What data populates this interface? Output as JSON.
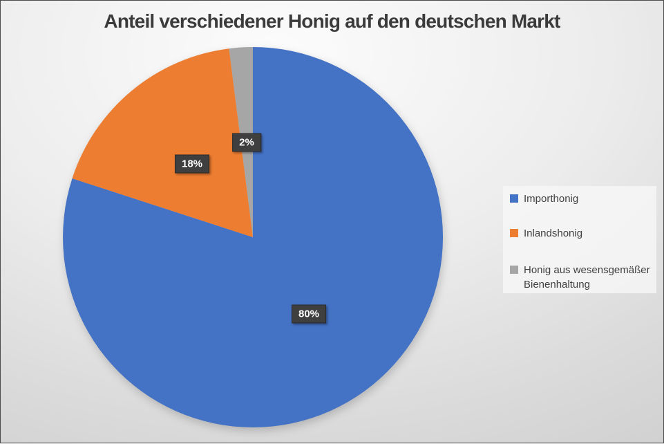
{
  "chart_data": {
    "type": "pie",
    "title": "Anteil verschiedener Honig auf den deutschen Markt",
    "categories": [
      "Importhonig",
      "Inlandshonig",
      "Honig aus wesensgemäßer Bienenhaltung"
    ],
    "values": [
      80,
      18,
      2
    ],
    "data_labels": [
      "80%",
      "18%",
      "2%"
    ],
    "colors": [
      "#4472C4",
      "#ED7D31",
      "#A6A6A6"
    ],
    "start_angle_deg": 0,
    "direction": "clockwise",
    "legend_position": "right",
    "grid": false,
    "styles": {
      "title_color": "#3B3B3B",
      "label_box_bg": "#3F3F3F",
      "label_box_border": "#2A2A2A",
      "label_text_color": "#FFFFFF",
      "legend_text_color": "#404040",
      "legend_bg": "#F6F6F6",
      "background_light": "#FCFCFC",
      "background_dark": "#C6C6C6"
    }
  }
}
